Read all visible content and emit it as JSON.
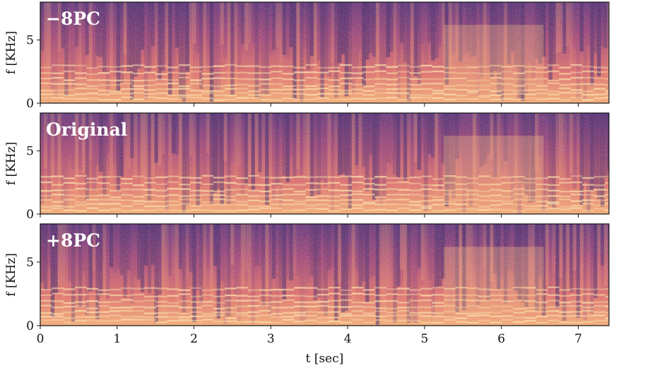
{
  "chart_data": [
    {
      "type": "heatmap",
      "panel_label": "−8PC",
      "ylabel": "f [KHz]",
      "xlim": [
        0,
        7.4
      ],
      "ylim": [
        0,
        8
      ],
      "y_ticks": [
        "0",
        "5"
      ],
      "colormap": "magma-like (dark purple = low, pale orange = high)"
    },
    {
      "type": "heatmap",
      "panel_label": "Original",
      "ylabel": "f [KHz]",
      "xlim": [
        0,
        7.4
      ],
      "ylim": [
        0,
        8
      ],
      "y_ticks": [
        "0",
        "5"
      ],
      "colormap": "magma-like (dark purple = low, pale orange = high)"
    },
    {
      "type": "heatmap",
      "panel_label": "+8PC",
      "ylabel": "f [KHz]",
      "xlim": [
        0,
        7.4
      ],
      "ylim": [
        0,
        8
      ],
      "y_ticks": [
        "0",
        "5"
      ],
      "x_ticks": [
        "0",
        "1",
        "2",
        "3",
        "4",
        "5",
        "6",
        "7"
      ],
      "xlabel": "t [sec]",
      "colormap": "magma-like (dark purple = low, pale orange = high)"
    }
  ],
  "colors": {
    "low": "#4b2a74",
    "mid": "#c2516e",
    "high": "#f6c98a",
    "axis": "#111111"
  }
}
